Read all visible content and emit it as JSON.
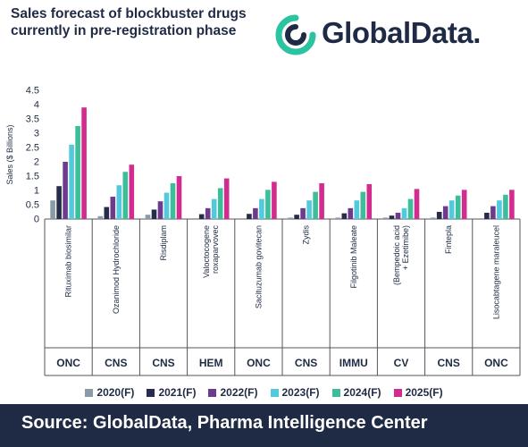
{
  "header": {
    "title": "Sales forecast of blockbuster drugs currently in pre-registration phase",
    "logo_text": "GlobalData."
  },
  "footer": {
    "source": "Source:  GlobalData, Pharma Intelligence Center"
  },
  "colors": {
    "navy": "#1f2a44",
    "teal": "#2cc4a0"
  },
  "chart_data": {
    "type": "bar",
    "ylabel": "Sales ($ Billions)",
    "ylim": [
      0,
      4.5
    ],
    "yticks": [
      "0",
      "0.5",
      "1",
      "1.5",
      "2",
      "2.5",
      "3",
      "3.5",
      "4",
      "4.5"
    ],
    "categories": [
      "Rituximab biosimilar",
      "Ozanimod Hydrochloride",
      "Risdiplam",
      "Valoctocogene roxaparvovec",
      "Sacituzumab govitecan",
      "Zydis",
      "Filgotinib Maleate",
      "(Bempedoic acid + Ezetimibe)",
      "Fintepla",
      "Lisocabtagene maraleucel"
    ],
    "groups": [
      "ONC",
      "CNS",
      "CNS",
      "HEM",
      "ONC",
      "CNS",
      "IMMU",
      "CV",
      "CNS",
      "ONC"
    ],
    "series": [
      {
        "name": "2020(F)",
        "color": "#8a9aa6",
        "values": [
          0.65,
          0.1,
          0.15,
          0.0,
          0.0,
          0.05,
          0.05,
          0.05,
          0.05,
          0.0
        ]
      },
      {
        "name": "2021(F)",
        "color": "#262c4a",
        "values": [
          1.15,
          0.42,
          0.33,
          0.17,
          0.18,
          0.15,
          0.2,
          0.12,
          0.25,
          0.22
        ]
      },
      {
        "name": "2022(F)",
        "color": "#6e3a8c",
        "values": [
          2.0,
          0.78,
          0.62,
          0.38,
          0.38,
          0.38,
          0.38,
          0.22,
          0.45,
          0.45
        ]
      },
      {
        "name": "2023(F)",
        "color": "#52c9dc",
        "values": [
          2.6,
          1.18,
          0.92,
          0.7,
          0.7,
          0.65,
          0.65,
          0.38,
          0.65,
          0.65
        ]
      },
      {
        "name": "2024(F)",
        "color": "#3dbe9b",
        "values": [
          3.25,
          1.65,
          1.25,
          1.08,
          1.02,
          0.95,
          0.95,
          0.7,
          0.82,
          0.85
        ]
      },
      {
        "name": "2025(F)",
        "color": "#d12c8e",
        "values": [
          3.9,
          1.9,
          1.5,
          1.42,
          1.3,
          1.25,
          1.22,
          1.05,
          1.02,
          1.02
        ]
      }
    ],
    "legend_position": "bottom",
    "grid": false
  }
}
